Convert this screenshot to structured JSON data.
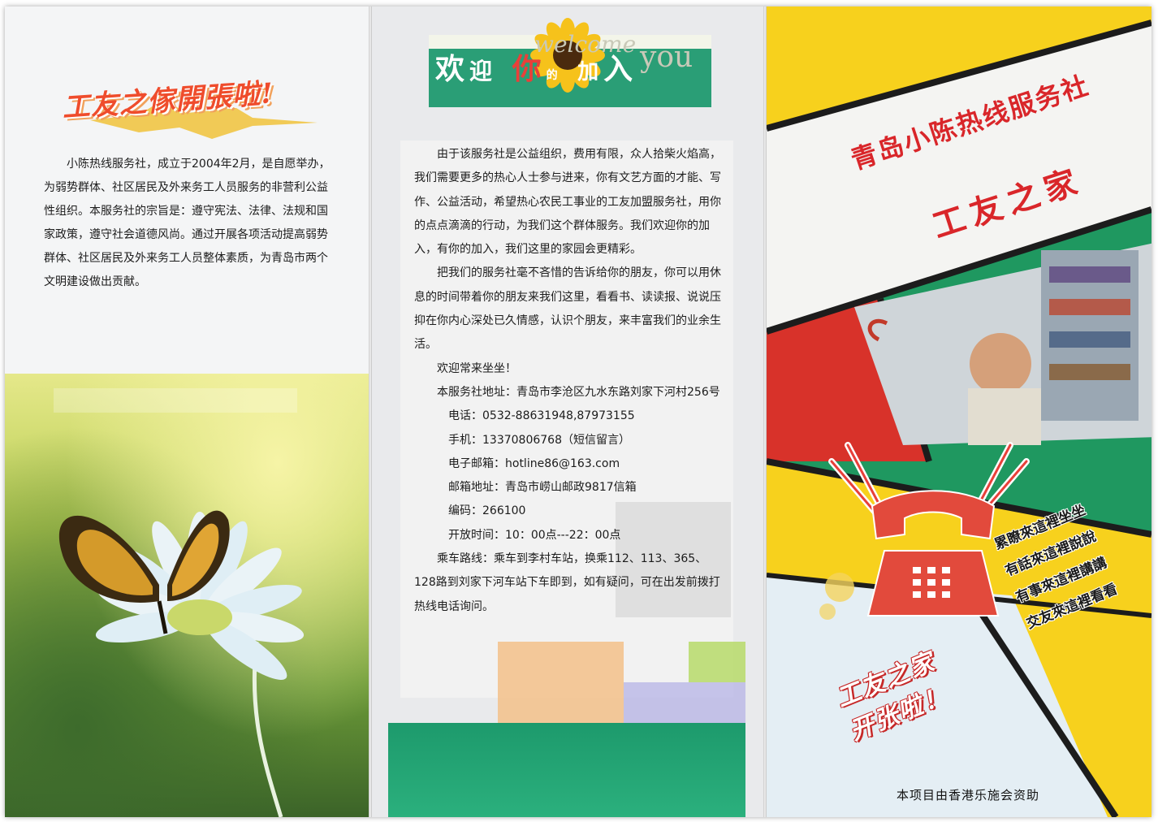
{
  "left_panel": {
    "title": "工友之傢開張啦!",
    "paragraph": "小陈热线服务社，成立于2004年2月，是自愿举办，为弱势群体、社区居民及外来务工人员服务的非营利公益性组织。本服务社的宗旨是：遵守宪法、法律、法规和国家政策，遵守社会道德风尚。通过开展各项活动提高弱势群体、社区居民及外来务工人员整体素质，为青岛市两个文明建设做出贡献。"
  },
  "middle_panel": {
    "header": {
      "char_1": "欢",
      "char_2": "迎",
      "char_3": "你",
      "char_4": "的",
      "char_5": "加",
      "char_6": "入",
      "bg_word": "welcome",
      "bg_word_2": "you"
    },
    "para_1": "由于该服务社是公益组织，费用有限，众人拾柴火焰高，我们需要更多的热心人士参与进来，你有文艺方面的才能、写作、公益活动，希望热心农民工事业的工友加盟服务社，用你的点点滴滴的行动，为我们这个群体服务。我们欢迎你的加入，有你的加入，我们这里的家园会更精彩。",
    "para_2": "把我们的服务社毫不吝惜的告诉给你的朋友，你可以用休息的时间带着你的朋友来我们这里，看看书、读读报、说说压抑在你内心深处已久情感，认识个朋友，来丰富我们的业余生活。",
    "welcome_line": "欢迎常来坐坐！",
    "address": "本服务社地址：青岛市李沧区九水东路刘家下河村256号",
    "phone": "电话：0532-88631948,87973155",
    "mobile": "手机：13370806768（短信留言）",
    "email": "电子邮箱：hotline86@163.com",
    "mailbox": "邮箱地址：青岛市崂山邮政9817信箱",
    "postcode": "编码：266100",
    "hours": "开放时间：10：00点---22：00点",
    "route": "乘车路线：乘车到李村车站，换乘112、113、365、128路到刘家下河车站下车即到，如有疑问，可在出发前拨打热线电话询问。"
  },
  "right_panel": {
    "title": "青岛小陈热线服务社",
    "subtitle": "工友之家",
    "slogans": [
      "累瞭來這裡坐坐",
      "有話來這裡說說",
      "有事來這裡講講",
      "交友來這裡看看"
    ],
    "grand_open_1": "工友之家",
    "grand_open_2": "开张啦！",
    "sponsor": "本项目由香港乐施会资助"
  },
  "colors": {
    "green": "#2a9e76",
    "yellow": "#f7d11d",
    "red": "#e8403a",
    "dark": "#1c1c1c"
  }
}
